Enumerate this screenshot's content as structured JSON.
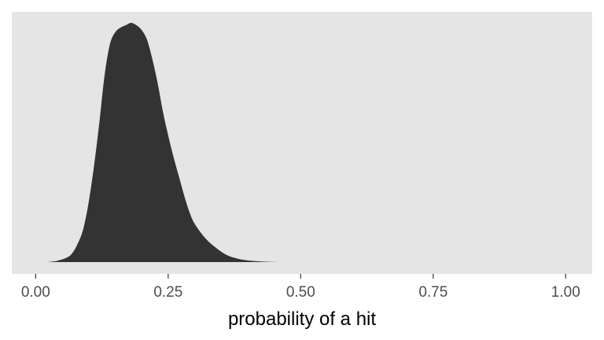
{
  "chart_data": {
    "type": "area",
    "title": "",
    "xlabel": "probability of a hit",
    "ylabel": "",
    "xlim": [
      -0.045,
      1.05
    ],
    "ylim": [
      0,
      1.0
    ],
    "grid": false,
    "x_ticks": [
      0.0,
      0.25,
      0.5,
      0.75,
      1.0
    ],
    "x_tick_labels": [
      "0.00",
      "0.25",
      "0.50",
      "0.75",
      "1.00"
    ],
    "series": [
      {
        "x": [
          0.02,
          0.04,
          0.06,
          0.07,
          0.08,
          0.09,
          0.1,
          0.11,
          0.12,
          0.13,
          0.14,
          0.15,
          0.16,
          0.17,
          0.18,
          0.19,
          0.2,
          0.21,
          0.22,
          0.23,
          0.24,
          0.25,
          0.26,
          0.27,
          0.28,
          0.29,
          0.3,
          0.32,
          0.34,
          0.36,
          0.38,
          0.4,
          0.43,
          0.46
        ],
        "y": [
          0.0,
          0.005,
          0.02,
          0.04,
          0.08,
          0.14,
          0.25,
          0.4,
          0.58,
          0.78,
          0.91,
          0.96,
          0.98,
          0.99,
          1.0,
          0.99,
          0.97,
          0.93,
          0.85,
          0.75,
          0.63,
          0.53,
          0.44,
          0.36,
          0.28,
          0.21,
          0.16,
          0.1,
          0.06,
          0.03,
          0.015,
          0.007,
          0.002,
          0.0
        ],
        "fill": "#333333"
      }
    ],
    "panel_background": "#e5e5e5"
  }
}
